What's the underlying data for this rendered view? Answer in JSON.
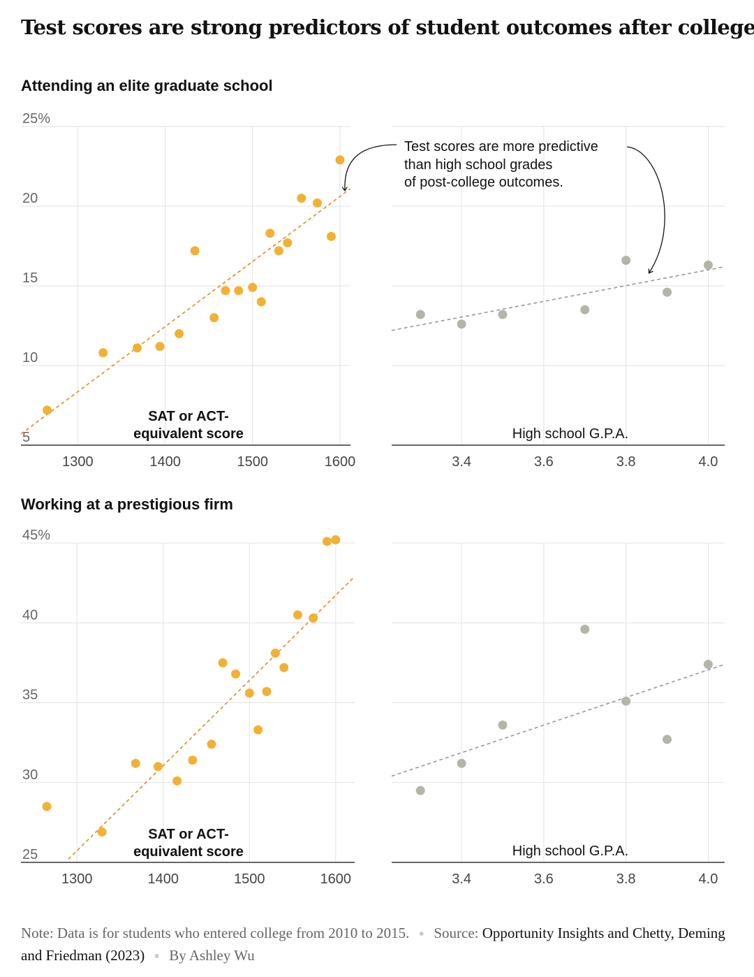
{
  "headline": "Test scores are strong predictors of student outcomes after college",
  "annotation": {
    "lines": [
      "Test scores are more predictive",
      "than high school grades",
      "of post-college outcomes."
    ]
  },
  "colors": {
    "sat": "#f2b134",
    "sat_trend": "#e08a1f",
    "gpa": "#b4b4a8",
    "gpa_trend": "#999999",
    "grid": "#e2e2e2",
    "axis": "#333333",
    "tick_text": "#444444"
  },
  "chart_data": [
    {
      "type": "scatter",
      "section_title": "Attending an elite graduate school",
      "xlabel": [
        "SAT or ACT-",
        "equivalent score"
      ],
      "xlim": [
        1235,
        1612
      ],
      "ylim": [
        5,
        25
      ],
      "xticks": [
        "1300",
        "1400",
        "1500",
        "1600"
      ],
      "yticks": [
        "5",
        "10",
        "15",
        "20",
        "25%"
      ],
      "x": [
        1265,
        1329,
        1368,
        1394,
        1416,
        1434,
        1456,
        1469,
        1484,
        1500,
        1510,
        1520,
        1530,
        1540,
        1556,
        1574,
        1590,
        1600
      ],
      "y": [
        7.2,
        10.8,
        11.1,
        11.2,
        12.0,
        17.2,
        13.0,
        14.7,
        14.7,
        14.9,
        14.0,
        18.3,
        17.2,
        17.7,
        20.5,
        20.2,
        18.1,
        22.9
      ],
      "trend": {
        "x": [
          1235,
          1612
        ],
        "y": [
          5.7,
          21.1
        ]
      }
    },
    {
      "type": "scatter",
      "xlabel": "High school G.P.A.",
      "xlim": [
        3.23,
        4.04
      ],
      "ylim": [
        5,
        25
      ],
      "xticks": [
        "3.4",
        "3.6",
        "3.8",
        "4.0"
      ],
      "x": [
        3.3,
        3.4,
        3.5,
        3.7,
        3.8,
        3.9,
        4.0
      ],
      "y": [
        13.2,
        12.6,
        13.2,
        13.5,
        16.6,
        14.6,
        16.3
      ],
      "trend": {
        "x": [
          3.23,
          4.04
        ],
        "y": [
          12.2,
          16.2
        ]
      }
    },
    {
      "type": "scatter",
      "section_title": "Working at a prestigious firm",
      "xlabel": [
        "SAT or ACT-",
        "equivalent score"
      ],
      "xlim": [
        1235,
        1622
      ],
      "ylim": [
        25,
        45
      ],
      "xticks": [
        "1300",
        "1400",
        "1500",
        "1600"
      ],
      "yticks": [
        "25",
        "30",
        "35",
        "40",
        "45%"
      ],
      "x": [
        1265,
        1329,
        1368,
        1394,
        1416,
        1434,
        1456,
        1469,
        1484,
        1500,
        1510,
        1520,
        1530,
        1540,
        1556,
        1574,
        1590,
        1600
      ],
      "y": [
        28.5,
        26.9,
        31.2,
        31.0,
        30.1,
        31.4,
        32.4,
        37.5,
        36.8,
        35.6,
        33.3,
        35.7,
        38.1,
        37.2,
        40.5,
        40.3,
        45.1,
        45.2
      ],
      "trend": {
        "x": [
          1290,
          1622
        ],
        "y": [
          25.2,
          42.9
        ]
      }
    },
    {
      "type": "scatter",
      "xlabel": "High school G.P.A.",
      "xlim": [
        3.23,
        4.04
      ],
      "ylim": [
        25,
        45
      ],
      "xticks": [
        "3.4",
        "3.6",
        "3.8",
        "4.0"
      ],
      "x": [
        3.3,
        3.4,
        3.5,
        3.7,
        3.8,
        3.9,
        4.0
      ],
      "y": [
        29.5,
        31.2,
        33.6,
        39.6,
        35.1,
        32.7,
        37.4
      ],
      "trend": {
        "x": [
          3.23,
          4.04
        ],
        "y": [
          30.4,
          37.4
        ]
      }
    }
  ],
  "footer": {
    "note_label": "Note:",
    "note_text": "Data is for students who entered college from 2010 to 2015.",
    "source_label": "Source:",
    "source_text": "Opportunity Insights and Chetty, Deming and Friedman (2023)",
    "byline": "By Ashley Wu"
  }
}
